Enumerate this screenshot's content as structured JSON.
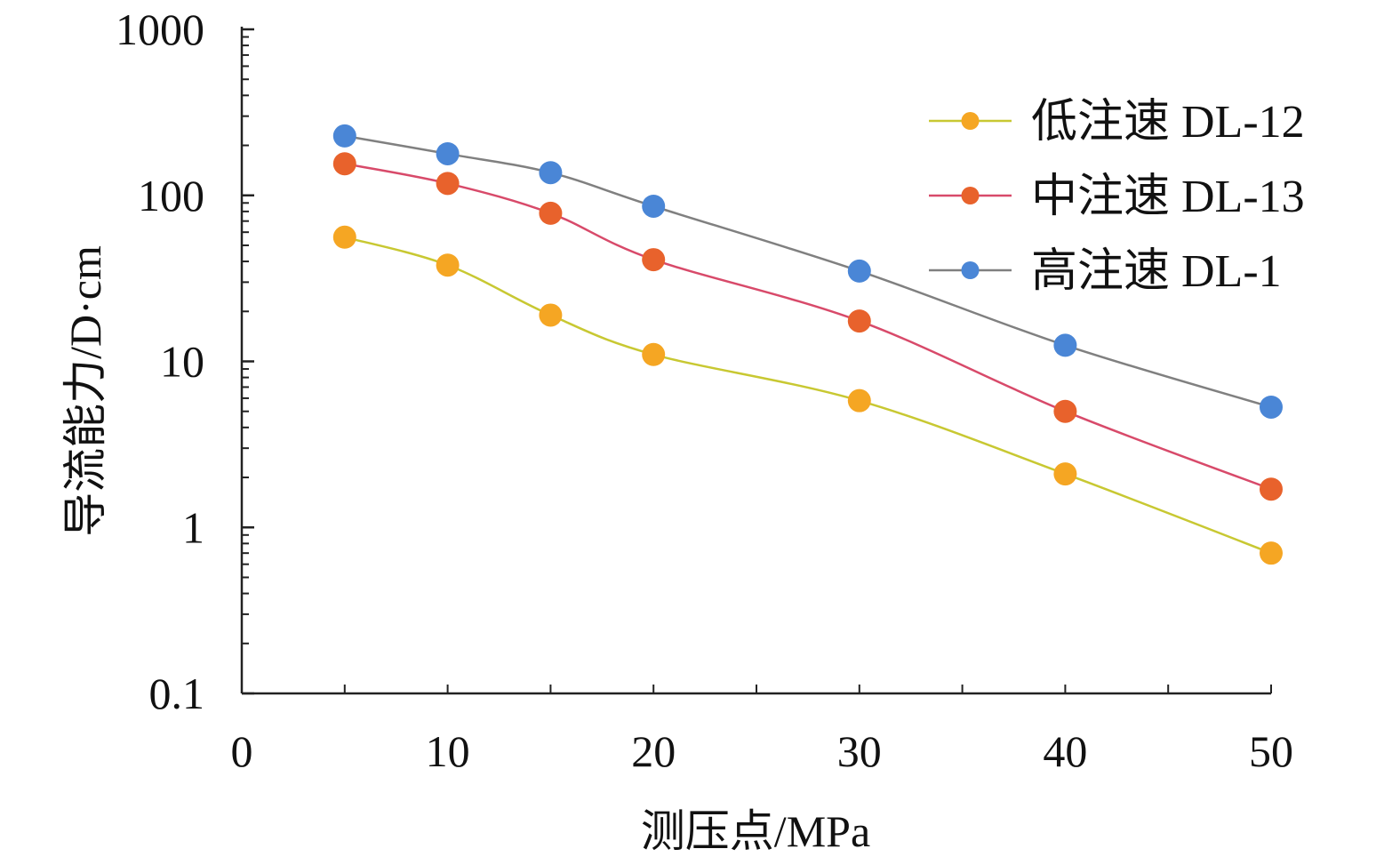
{
  "chart_data": {
    "type": "line",
    "xlabel": "测压点/MPa",
    "ylabel": "导流能力/D·cm",
    "x_scale": "linear",
    "y_scale": "log",
    "xlim": [
      0,
      50
    ],
    "ylim": [
      0.1,
      1000
    ],
    "x_ticks": [
      "0",
      "10",
      "20",
      "30",
      "40",
      "50"
    ],
    "y_ticks": [
      "0.1",
      "1",
      "10",
      "100",
      "1000"
    ],
    "grid": false,
    "legend_position": "top-right",
    "x": [
      5,
      10,
      15,
      20,
      30,
      40,
      50
    ],
    "series": [
      {
        "name": "低注速 DL-12",
        "values": [
          56,
          38,
          19,
          11,
          5.8,
          2.1,
          0.7
        ],
        "color": "#f5a623",
        "line_color": "#c8c832"
      },
      {
        "name": "中注速 DL-13",
        "values": [
          155,
          118,
          78,
          41,
          17.5,
          5.0,
          1.7
        ],
        "color": "#e8622c",
        "line_color": "#d84a6a"
      },
      {
        "name": "高注速 DL-1",
        "values": [
          228,
          178,
          137,
          86,
          35,
          12.5,
          5.3
        ],
        "color": "#4a86d6",
        "line_color": "#808080"
      }
    ]
  }
}
